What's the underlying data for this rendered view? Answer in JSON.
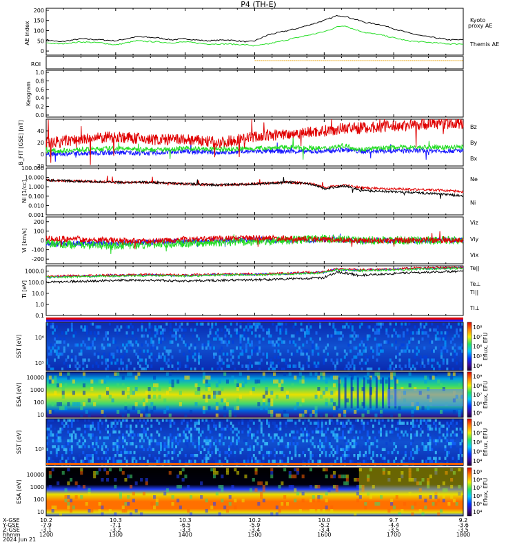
{
  "title": "P4 (TH-E)",
  "colors": {
    "black": "#000000",
    "green": "#22dd22",
    "red": "#e00000",
    "blue": "#1a1aff",
    "orange": "#e8a000"
  },
  "chart_data": [
    {
      "type": "line",
      "ylabel": "AE index",
      "yticks": [
        "200",
        "150",
        "100",
        "50",
        "0"
      ],
      "ylim": [
        -20,
        210
      ],
      "legend": [
        {
          "name": "Kyoto proxy AE",
          "label1": "Kyoto",
          "label2": "proxy AE",
          "color": "#22dd22"
        },
        {
          "name": "Themis AE",
          "label1": "Themis AE",
          "color": "#000000"
        }
      ],
      "series": [
        {
          "name": "Themis AE",
          "color": "#000000",
          "x": [
            12.0,
            12.2,
            12.5,
            12.8,
            13.0,
            13.3,
            13.6,
            13.8,
            14.0,
            14.3,
            14.6,
            14.9,
            15.0,
            15.2,
            15.4,
            15.6,
            15.8,
            16.0,
            16.2,
            16.3,
            16.4,
            16.5,
            16.6,
            16.8,
            17.0,
            17.2,
            17.4,
            17.6,
            17.8,
            18.0
          ],
          "y": [
            55,
            45,
            60,
            55,
            50,
            70,
            65,
            55,
            60,
            50,
            55,
            45,
            50,
            80,
            95,
            110,
            130,
            150,
            175,
            170,
            160,
            150,
            140,
            130,
            110,
            90,
            75,
            65,
            55,
            55
          ]
        },
        {
          "name": "Kyoto proxy AE",
          "color": "#22dd22",
          "x": [
            12.0,
            12.2,
            12.5,
            12.8,
            13.0,
            13.3,
            13.6,
            13.8,
            14.0,
            14.3,
            14.6,
            14.9,
            15.0,
            15.2,
            15.4,
            15.6,
            15.8,
            16.0,
            16.2,
            16.3,
            16.4,
            16.5,
            16.6,
            16.8,
            17.0,
            17.2,
            17.4,
            17.6,
            17.8,
            18.0
          ],
          "y": [
            40,
            35,
            45,
            40,
            30,
            50,
            45,
            40,
            45,
            35,
            35,
            30,
            25,
            35,
            50,
            65,
            80,
            95,
            120,
            125,
            110,
            100,
            90,
            80,
            65,
            50,
            45,
            40,
            35,
            35
          ]
        }
      ]
    },
    {
      "type": "line",
      "ylabel": "ROI"
    },
    {
      "type": "heatmap",
      "ylabel": "Keogram",
      "yticks": [
        "1.0",
        "0.8",
        "0.6",
        "0.4",
        "0.2",
        "0.0"
      ],
      "ylim": [
        0,
        1
      ]
    },
    {
      "type": "line",
      "ylabel": "B_FIT [GSE] [nT]",
      "yticks": [
        "40",
        "20",
        "0",
        "-20"
      ],
      "ylim": [
        -20,
        60
      ],
      "series": [
        {
          "name": "Bz",
          "color": "#e00000",
          "x": [
            12.0,
            12.5,
            13.0,
            13.5,
            14.0,
            14.5,
            15.0,
            15.5,
            16.0,
            16.3,
            16.5,
            17.0,
            17.5,
            18.0
          ],
          "y": [
            20,
            25,
            30,
            25,
            25,
            20,
            30,
            35,
            40,
            45,
            45,
            48,
            52,
            53
          ]
        },
        {
          "name": "By",
          "color": "#22dd22",
          "x": [
            12.0,
            12.5,
            13.0,
            13.5,
            14.0,
            14.5,
            15.0,
            15.5,
            16.0,
            16.3,
            16.5,
            17.0,
            17.5,
            18.0
          ],
          "y": [
            5,
            8,
            10,
            8,
            10,
            8,
            10,
            12,
            10,
            15,
            8,
            12,
            12,
            12
          ]
        },
        {
          "name": "Bx",
          "color": "#1a1aff",
          "x": [
            12.0,
            12.5,
            13.0,
            13.5,
            14.0,
            14.5,
            15.0,
            15.5,
            16.0,
            16.3,
            16.5,
            17.0,
            17.5,
            18.0
          ],
          "y": [
            0,
            2,
            3,
            2,
            5,
            3,
            5,
            5,
            5,
            8,
            5,
            6,
            6,
            6
          ]
        }
      ]
    },
    {
      "type": "line",
      "ylabel": "Ni [1/cc]",
      "yticks": [
        "100.000",
        "10.000",
        "1.000",
        "0.100",
        "0.010",
        "0.001"
      ],
      "ylim": [
        0.001,
        100
      ],
      "scale": "log",
      "series": [
        {
          "name": "Ne",
          "color": "#e00000",
          "x": [
            12.0,
            12.5,
            13.0,
            13.5,
            14.0,
            14.5,
            15.0,
            15.5,
            15.8,
            16.0,
            16.3,
            16.5,
            17.0,
            17.5,
            18.0
          ],
          "y": [
            5,
            4,
            3,
            3,
            2,
            1.5,
            2,
            3,
            2,
            0.8,
            1.5,
            0.8,
            0.6,
            0.5,
            0.3
          ]
        },
        {
          "name": "Ni",
          "color": "#000000",
          "x": [
            12.0,
            12.5,
            13.0,
            13.5,
            14.0,
            14.5,
            15.0,
            15.5,
            15.8,
            16.0,
            16.3,
            16.5,
            17.0,
            17.5,
            18.0
          ],
          "y": [
            5,
            4,
            3,
            3,
            2,
            1.5,
            2,
            3,
            2,
            0.6,
            1.2,
            0.4,
            0.3,
            0.2,
            0.1
          ]
        }
      ]
    },
    {
      "type": "line",
      "ylabel": "Vi [km/s]",
      "yticks": [
        "200",
        "100",
        "0",
        "-100",
        "-200"
      ],
      "ylim": [
        -250,
        250
      ],
      "series": [
        {
          "name": "Viz",
          "color": "#e00000",
          "x": [
            12.0,
            12.5,
            13.0,
            13.5,
            14.0,
            14.5,
            15.0,
            15.5,
            16.0,
            16.5,
            17.0,
            17.5,
            18.0
          ],
          "y": [
            20,
            10,
            0,
            -10,
            10,
            20,
            30,
            20,
            10,
            0,
            0,
            0,
            0
          ]
        },
        {
          "name": "Viy",
          "color": "#22dd22",
          "x": [
            12.0,
            12.5,
            13.0,
            13.5,
            14.0,
            14.5,
            15.0,
            15.5,
            16.0,
            16.5,
            17.0,
            17.5,
            18.0
          ],
          "y": [
            -30,
            -50,
            -60,
            -40,
            -30,
            -20,
            -10,
            0,
            20,
            0,
            0,
            0,
            0
          ]
        },
        {
          "name": "Vix",
          "color": "#1a1aff",
          "x": [
            12.0,
            12.5,
            13.0,
            13.5,
            14.0,
            14.5,
            15.0,
            15.5,
            16.0,
            16.5,
            17.0,
            17.5,
            18.0
          ],
          "y": [
            -40,
            -30,
            -30,
            -20,
            -10,
            0,
            10,
            0,
            10,
            0,
            0,
            0,
            0
          ]
        }
      ]
    },
    {
      "type": "line",
      "ylabel": "Ti [eV]",
      "yticks": [
        "1000.0",
        "100.0",
        "10.0",
        "1.0",
        "0.1"
      ],
      "ylim": [
        0.1,
        3000
      ],
      "scale": "log",
      "legend": [
        {
          "name": "Te||",
          "color": "#000000"
        },
        {
          "name": "Te⊥",
          "color": "#e00000"
        },
        {
          "name": "Ti||",
          "color": "#22dd22"
        },
        {
          "name": "Ti⊥",
          "color": "#1a1aff"
        }
      ],
      "series": [
        {
          "name": "Ti",
          "color": "#22dd22",
          "x": [
            12.0,
            12.5,
            13.0,
            13.5,
            14.0,
            14.5,
            15.0,
            15.5,
            16.0,
            16.2,
            16.5,
            17.0,
            17.5,
            18.0
          ],
          "y": [
            300,
            350,
            400,
            450,
            400,
            500,
            500,
            600,
            800,
            1500,
            1200,
            1500,
            1800,
            2000
          ]
        },
        {
          "name": "Te",
          "color": "#000000",
          "x": [
            12.0,
            12.5,
            13.0,
            13.5,
            14.0,
            14.5,
            15.0,
            15.5,
            16.0,
            16.2,
            16.5,
            17.0,
            17.5,
            18.0
          ],
          "y": [
            100,
            120,
            150,
            150,
            130,
            150,
            160,
            200,
            250,
            800,
            400,
            600,
            800,
            1000
          ]
        }
      ]
    },
    {
      "type": "heatmap",
      "ylabel": "SST [eV]",
      "yticks": [
        "10⁶",
        "10⁵"
      ],
      "colorbar": {
        "label": "Eflux, EFU",
        "ticks": [
          "10⁸",
          "10⁷",
          "10⁶",
          "10⁵",
          "10⁴"
        ]
      }
    },
    {
      "type": "heatmap",
      "ylabel": "ESA [eV]",
      "yticks": [
        "10000",
        "1000",
        "100",
        "10"
      ],
      "colorbar": {
        "label": "Eflux, EFU",
        "ticks": [
          "10⁹",
          "10⁸",
          "10⁷",
          "10⁶",
          "10⁵"
        ]
      }
    },
    {
      "type": "heatmap",
      "ylabel": "SST [eV]",
      "yticks": [
        "10⁵"
      ],
      "colorbar": {
        "label": "Eflux, EFU",
        "ticks": [
          "10⁸",
          "10⁷",
          "10⁶",
          "10⁵",
          "10⁴"
        ]
      }
    },
    {
      "type": "heatmap",
      "ylabel": "ESA [eV]",
      "yticks": [
        "10000",
        "1000",
        "100",
        "10"
      ],
      "colorbar": {
        "label": "Eflux, EFU",
        "ticks": [
          "10⁹",
          "10⁸",
          "10⁷",
          "10⁶",
          "10⁵",
          "10⁴"
        ]
      }
    }
  ],
  "xaxis": {
    "rowlabels": [
      "X-GSE",
      "Y-GSE",
      "Z-GSE",
      "hhmm",
      "2024 Jun 21"
    ],
    "ticks": [
      {
        "x": 12.0,
        "vals": [
          "10.2",
          "-7.9",
          "-3.1",
          "1200"
        ]
      },
      {
        "x": 13.0,
        "vals": [
          "10.3",
          "-7.1",
          "-3.2",
          "1300"
        ]
      },
      {
        "x": 14.0,
        "vals": [
          "10.3",
          "-6.5",
          "-3.3",
          "1400"
        ]
      },
      {
        "x": 15.0,
        "vals": [
          "10.2",
          "-5.9",
          "-3.4",
          "1500"
        ]
      },
      {
        "x": 16.0,
        "vals": [
          "10.0",
          "-5.2",
          "-3.4",
          "1600"
        ]
      },
      {
        "x": 17.0,
        "vals": [
          "9.7",
          "-4.4",
          "-3.5",
          "1700"
        ]
      },
      {
        "x": 18.0,
        "vals": [
          "9.2",
          "-3.6",
          "-3.5",
          "1800"
        ]
      }
    ]
  }
}
